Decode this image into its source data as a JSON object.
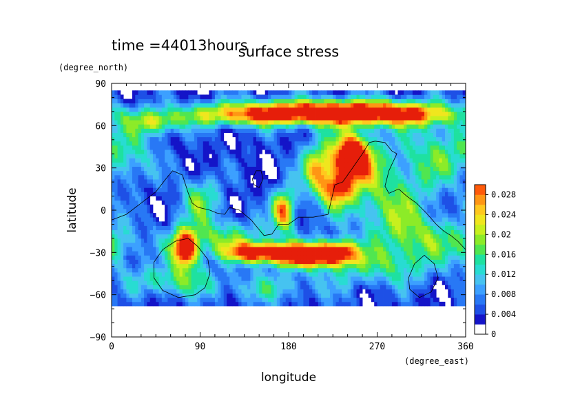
{
  "chart_data": {
    "type": "heatmap",
    "title": "surface stress",
    "subtitle": "time =44013hours",
    "xlabel": "longitude",
    "ylabel": "latitude",
    "x_unit": "(degree_east)",
    "y_unit": "(degree_north)",
    "xlim": [
      0,
      360
    ],
    "ylim": [
      -90,
      90
    ],
    "x_ticks": [
      0,
      90,
      180,
      270,
      360
    ],
    "y_ticks": [
      -90,
      -60,
      -30,
      0,
      30,
      60,
      90
    ],
    "lat_band": [
      -68,
      85
    ],
    "colorbar": {
      "range": [
        0,
        0.03
      ],
      "tick_values": [
        0,
        0.004,
        0.008,
        0.012,
        0.016,
        0.02,
        0.024,
        0.028
      ],
      "tick_labels": [
        "0",
        "0.004",
        "0.008",
        "0.012",
        "0.016",
        "0.02",
        "0.024",
        "0.028"
      ],
      "levels": [
        0,
        0.002,
        0.004,
        0.006,
        0.008,
        0.01,
        0.012,
        0.014,
        0.016,
        0.018,
        0.02,
        0.022,
        0.024,
        0.026,
        0.028,
        0.03
      ],
      "colors": [
        "#ffffff",
        "#1414c8",
        "#1e50e6",
        "#2878f5",
        "#3ca0ff",
        "#46c3f0",
        "#28dcd2",
        "#1ee1a0",
        "#50e650",
        "#8ceb28",
        "#c8f01e",
        "#f0e61e",
        "#ffc81e",
        "#ff9614",
        "#ff5a0a",
        "#e61e0a"
      ]
    },
    "field_peaks": [
      {
        "lon": 245,
        "lat": 38,
        "value": 0.03,
        "sx": 12,
        "sy": 10
      },
      {
        "lon": 242,
        "lat": 28,
        "value": 0.014,
        "sx": 30,
        "sy": 22
      },
      {
        "lon": 225,
        "lat": 70,
        "value": 0.026,
        "sx": 60,
        "sy": 6
      },
      {
        "lon": 135,
        "lat": 68,
        "value": 0.018,
        "sx": 55,
        "sy": 6
      },
      {
        "lon": 300,
        "lat": 68,
        "value": 0.016,
        "sx": 40,
        "sy": 6
      },
      {
        "lon": 45,
        "lat": 62,
        "value": 0.014,
        "sx": 18,
        "sy": 6
      },
      {
        "lon": 175,
        "lat": 0,
        "value": 0.024,
        "sx": 8,
        "sy": 10
      },
      {
        "lon": 75,
        "lat": -28,
        "value": 0.03,
        "sx": 9,
        "sy": 9
      },
      {
        "lon": 150,
        "lat": -30,
        "value": 0.028,
        "sx": 22,
        "sy": 5
      },
      {
        "lon": 195,
        "lat": -32,
        "value": 0.03,
        "sx": 20,
        "sy": 6
      },
      {
        "lon": 230,
        "lat": -30,
        "value": 0.028,
        "sx": 14,
        "sy": 6
      },
      {
        "lon": 210,
        "lat": 28,
        "value": 0.014,
        "sx": 10,
        "sy": 12
      },
      {
        "lon": 230,
        "lat": 15,
        "value": 0.016,
        "sx": 10,
        "sy": 8
      },
      {
        "lon": 90,
        "lat": 8,
        "value": 0.012,
        "sx": 15,
        "sy": 12
      },
      {
        "lon": 110,
        "lat": -20,
        "value": 0.012,
        "sx": 40,
        "sy": 10
      },
      {
        "lon": 330,
        "lat": 40,
        "value": 0.011,
        "sx": 25,
        "sy": 18
      },
      {
        "lon": 320,
        "lat": -20,
        "value": 0.01,
        "sx": 30,
        "sy": 12
      },
      {
        "lon": 20,
        "lat": 40,
        "value": 0.009,
        "sx": 20,
        "sy": 14
      },
      {
        "lon": 290,
        "lat": 0,
        "value": 0.01,
        "sx": 25,
        "sy": 20
      },
      {
        "lon": 5,
        "lat": -25,
        "value": 0.009,
        "sx": 15,
        "sy": 10
      },
      {
        "lon": 270,
        "lat": -40,
        "value": 0.01,
        "sx": 40,
        "sy": 10
      },
      {
        "lon": 160,
        "lat": -55,
        "value": 0.008,
        "sx": 40,
        "sy": 8
      },
      {
        "lon": 60,
        "lat": -50,
        "value": 0.012,
        "sx": 30,
        "sy": 8
      }
    ],
    "field_background": 0.0075,
    "coastlines": [
      [
        [
          0,
          -7
        ],
        [
          15,
          -3
        ],
        [
          30,
          5
        ],
        [
          45,
          13
        ],
        [
          55,
          22
        ],
        [
          62,
          28
        ],
        [
          72,
          25
        ],
        [
          78,
          12
        ],
        [
          82,
          5
        ],
        [
          88,
          2
        ],
        [
          100,
          0
        ],
        [
          107,
          -2
        ],
        [
          115,
          -3
        ],
        [
          120,
          2
        ],
        [
          130,
          0
        ],
        [
          142,
          -7
        ],
        [
          155,
          -18
        ],
        [
          163,
          -17
        ],
        [
          170,
          -10
        ],
        [
          180,
          -10
        ],
        [
          190,
          -5
        ],
        [
          205,
          -5
        ],
        [
          220,
          -3
        ],
        [
          225,
          12
        ],
        [
          227,
          18
        ],
        [
          235,
          20
        ],
        [
          240,
          25
        ],
        [
          247,
          32
        ],
        [
          255,
          40
        ],
        [
          262,
          48
        ],
        [
          268,
          49
        ],
        [
          278,
          48
        ],
        [
          285,
          42
        ],
        [
          290,
          40
        ],
        [
          282,
          28
        ],
        [
          278,
          17
        ],
        [
          282,
          12
        ],
        [
          292,
          15
        ],
        [
          300,
          10
        ],
        [
          310,
          5
        ],
        [
          320,
          -2
        ],
        [
          330,
          -10
        ],
        [
          338,
          -15
        ],
        [
          345,
          -18
        ],
        [
          352,
          -22
        ],
        [
          360,
          -28
        ]
      ],
      [
        [
          52,
          -28
        ],
        [
          65,
          -22
        ],
        [
          78,
          -20
        ],
        [
          88,
          -26
        ],
        [
          98,
          -35
        ],
        [
          100,
          -45
        ],
        [
          95,
          -55
        ],
        [
          85,
          -60
        ],
        [
          68,
          -62
        ],
        [
          52,
          -57
        ],
        [
          43,
          -48
        ],
        [
          43,
          -37
        ],
        [
          52,
          -28
        ]
      ],
      [
        [
          302,
          -48
        ],
        [
          308,
          -38
        ],
        [
          318,
          -32
        ],
        [
          328,
          -38
        ],
        [
          332,
          -48
        ],
        [
          325,
          -58
        ],
        [
          313,
          -62
        ],
        [
          303,
          -56
        ],
        [
          302,
          -48
        ]
      ],
      [
        [
          143,
          22
        ],
        [
          147,
          28
        ],
        [
          152,
          28
        ],
        [
          154,
          22
        ],
        [
          150,
          16
        ],
        [
          145,
          18
        ],
        [
          143,
          22
        ]
      ]
    ]
  }
}
